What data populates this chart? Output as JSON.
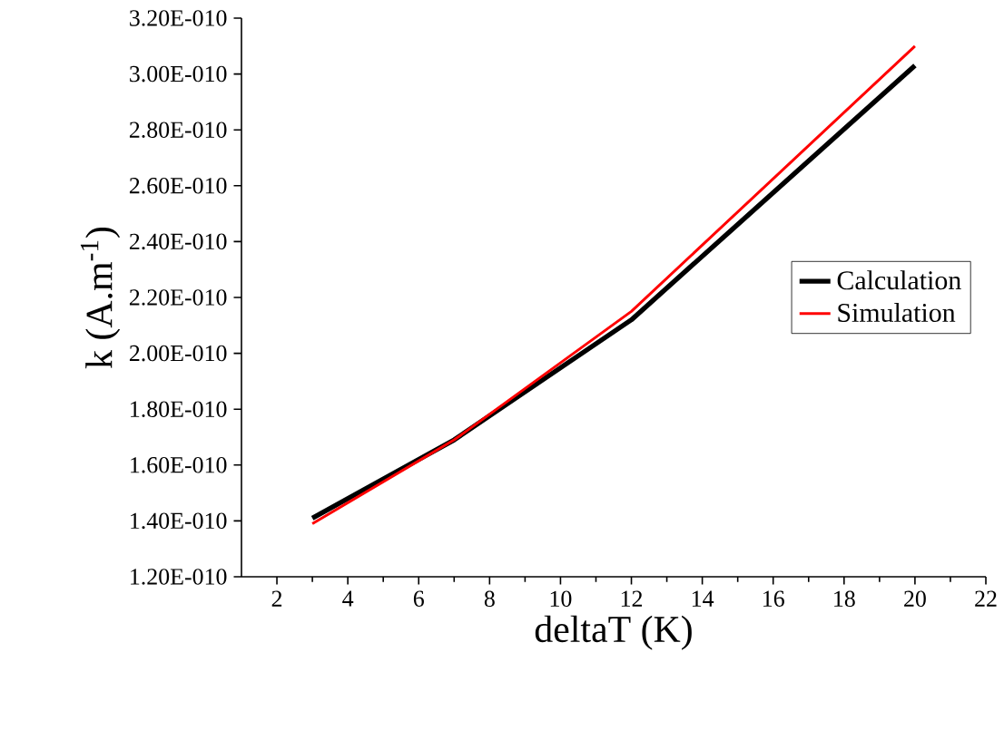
{
  "chart_data": {
    "type": "line",
    "xlabel": "deltaT (K)",
    "ylabel": "k (A.m$^{-1}$)",
    "x": [
      3,
      7,
      12,
      20
    ],
    "series": [
      {
        "name": "Calculation",
        "color": "#000000",
        "values": [
          1.41e-10,
          1.69e-10,
          2.12e-10,
          3.03e-10
        ]
      },
      {
        "name": "Simulation",
        "color": "#ff0000",
        "values": [
          1.39e-10,
          1.69e-10,
          2.15e-10,
          3.1e-10
        ]
      }
    ],
    "xlim": [
      1,
      22
    ],
    "xticks": [
      2,
      4,
      6,
      8,
      10,
      12,
      14,
      16,
      18,
      20,
      22
    ],
    "ylim": [
      1.2e-10,
      3.2e-10
    ],
    "yticks": [
      {
        "value": 1.2e-10,
        "label": "1.20E-010"
      },
      {
        "value": 1.4e-10,
        "label": "1.40E-010"
      },
      {
        "value": 1.6e-10,
        "label": "1.60E-010"
      },
      {
        "value": 1.8e-10,
        "label": "1.80E-010"
      },
      {
        "value": 2e-10,
        "label": "2.00E-010"
      },
      {
        "value": 2.2e-10,
        "label": "2.20E-010"
      },
      {
        "value": 2.4e-10,
        "label": "2.40E-010"
      },
      {
        "value": 2.6e-10,
        "label": "2.60E-010"
      },
      {
        "value": 2.8e-10,
        "label": "2.80E-010"
      },
      {
        "value": 3e-10,
        "label": "3.00E-010"
      },
      {
        "value": 3.2e-10,
        "label": "3.20E-010"
      }
    ],
    "legend": "right",
    "grid": false,
    "marker": "none",
    "line_style": "solid"
  }
}
